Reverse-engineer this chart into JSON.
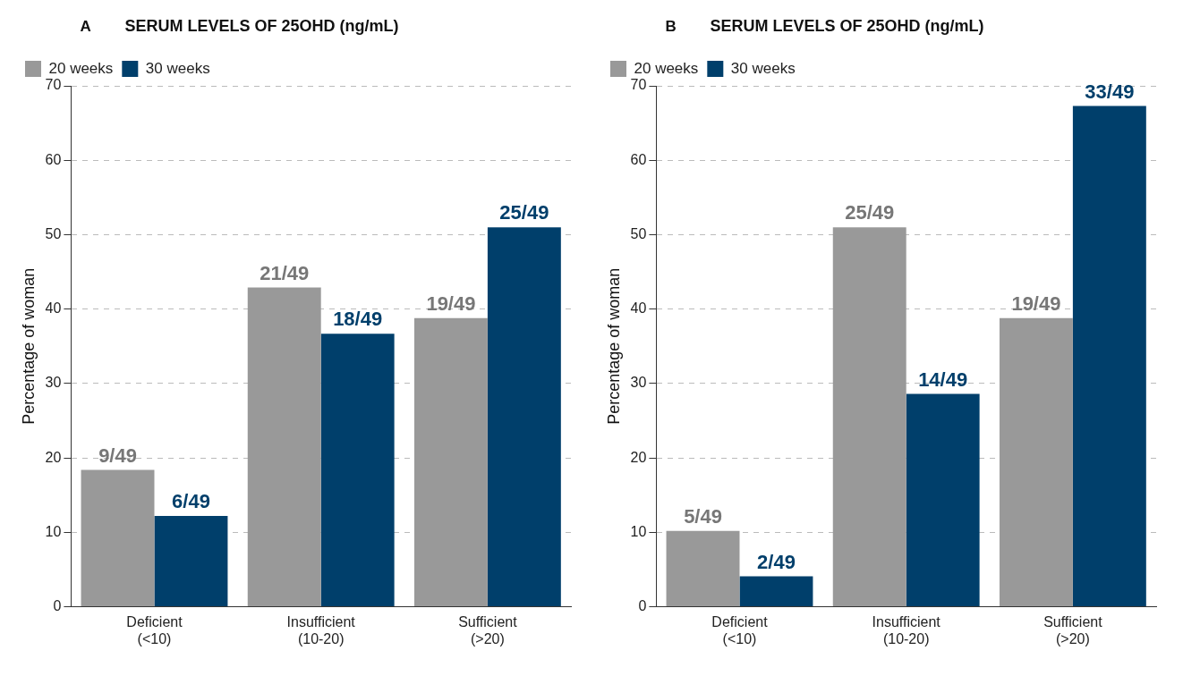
{
  "chart_data": [
    {
      "type": "bar",
      "title": "SERUM LEVELS OF 25OHD (ng/mL)",
      "annotations": [
        "A"
      ],
      "ylabel": "Percentage of woman",
      "categories": [
        "Deficient (<10)",
        "Insufficient (10-20)",
        "Sufficient (>20)"
      ],
      "series": [
        {
          "name": "20 weeks",
          "color": "#999999",
          "values": [
            18.4,
            42.9,
            38.8
          ],
          "value_labels": [
            "9/49",
            "21/49",
            "19/49"
          ]
        },
        {
          "name": "30 weeks",
          "color": "#003f6b",
          "values": [
            12.2,
            36.7,
            51.0
          ],
          "value_labels": [
            "6/49",
            "18/49",
            "25/49"
          ]
        }
      ],
      "ylim": [
        0,
        70
      ],
      "yticks": [
        0,
        10,
        20,
        30,
        40,
        50,
        60,
        70
      ],
      "grid": "y",
      "legend": "top left"
    },
    {
      "type": "bar",
      "title": "SERUM LEVELS OF 25OHD (ng/mL)",
      "annotations": [
        "B"
      ],
      "ylabel": "Percentage of woman",
      "categories": [
        "Deficient (<10)",
        "Insufficient (10-20)",
        "Sufficient (>20)"
      ],
      "series": [
        {
          "name": "20 weeks",
          "color": "#999999",
          "values": [
            10.2,
            51.0,
            38.8
          ],
          "value_labels": [
            "5/49",
            "25/49",
            "19/49"
          ]
        },
        {
          "name": "30 weeks",
          "color": "#003f6b",
          "values": [
            4.1,
            28.6,
            67.3
          ],
          "value_labels": [
            "2/49",
            "14/49",
            "33/49"
          ]
        }
      ],
      "ylim": [
        0,
        70
      ],
      "yticks": [
        0,
        10,
        20,
        30,
        40,
        50,
        60,
        70
      ],
      "grid": "y",
      "legend": "top left"
    }
  ]
}
